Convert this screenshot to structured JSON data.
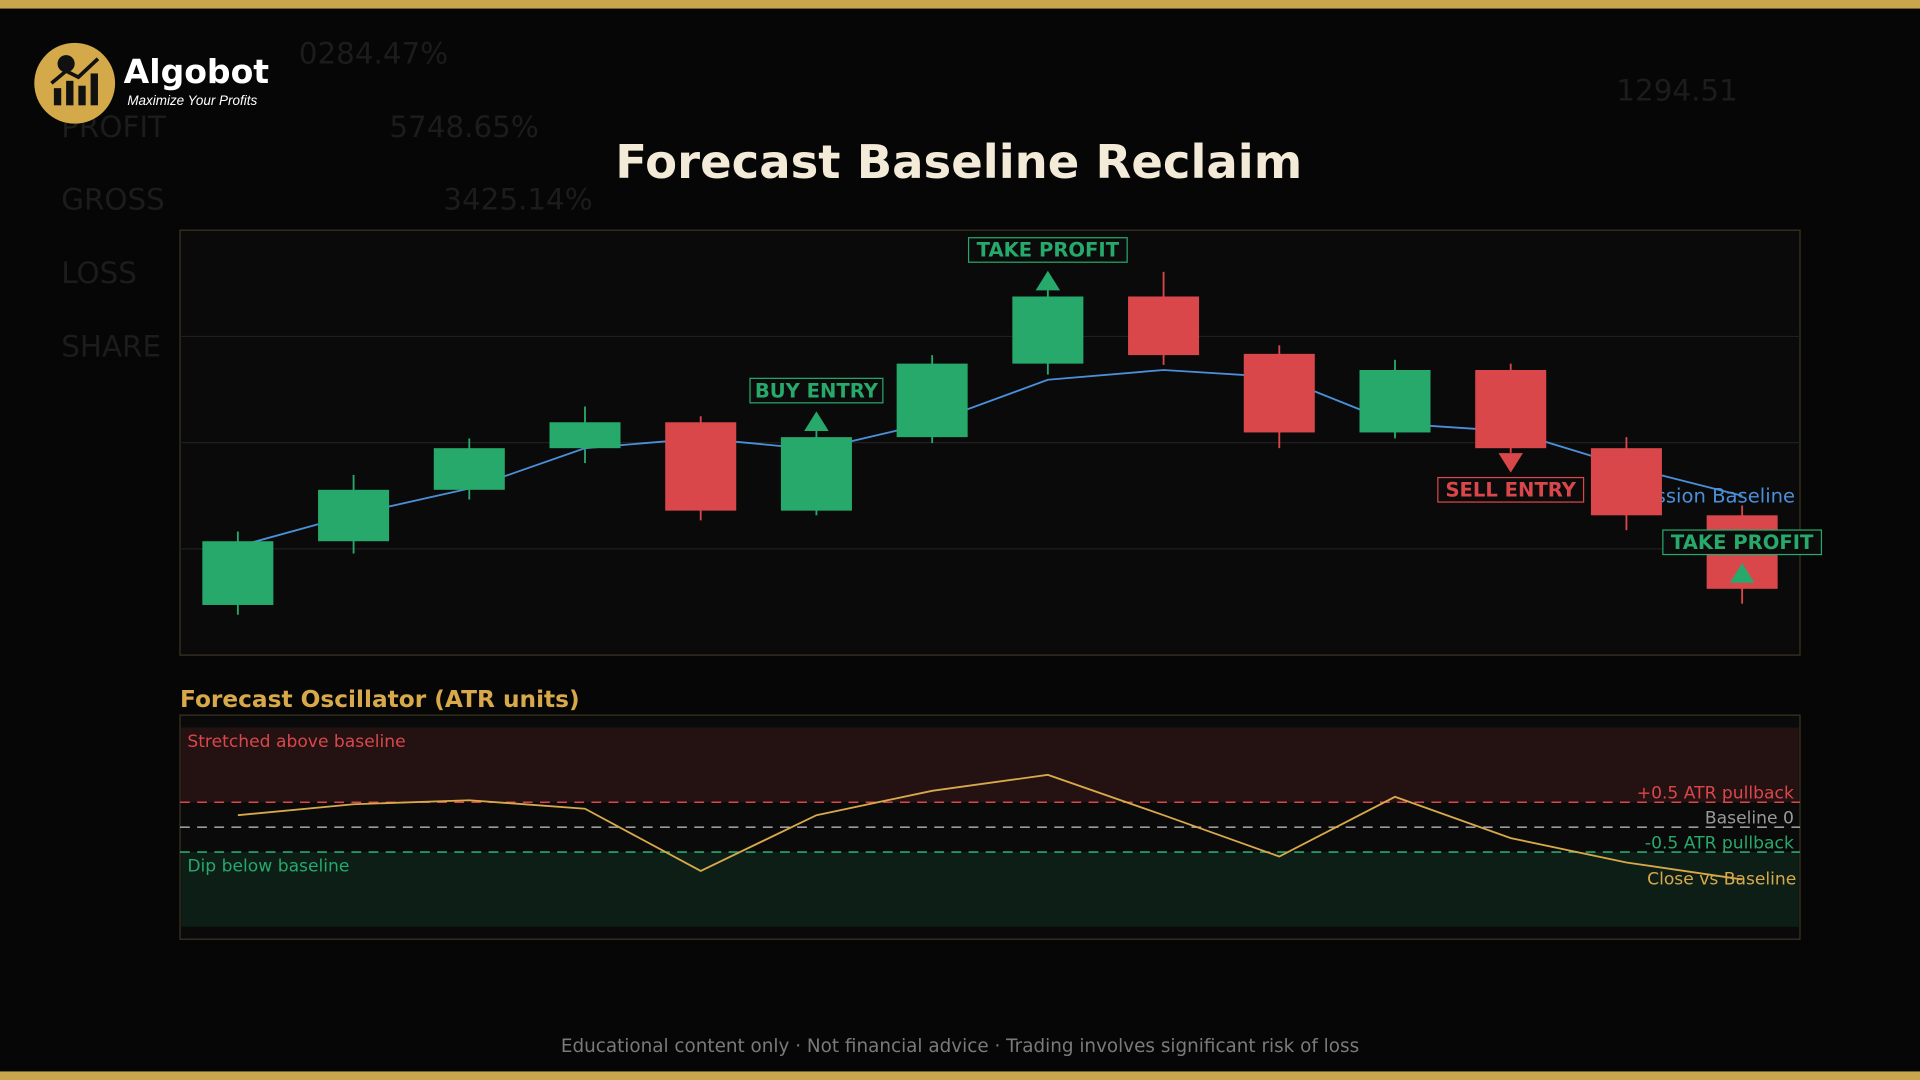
{
  "brand": {
    "name": "Algobot",
    "tagline": "Maximize Your Profits"
  },
  "background_text": [
    "0284.47%",
    "PROFIT",
    "5748.65%",
    "GROSS",
    "3425.14%",
    "LOSS",
    "SHARE",
    "1294.51"
  ],
  "footer": "Educational content only  ·  Not financial advice  ·  Trading involves significant risk of loss",
  "chart_data": [
    {
      "type": "candlestick",
      "title": "Forecast Baseline Reclaim",
      "ylim": [
        0,
        100
      ],
      "gridlines": [
        25,
        50,
        75
      ],
      "open": [
        11.8,
        26.8,
        38.9,
        48.7,
        54.8,
        34.0,
        51.3,
        68.6,
        84.4,
        70.9,
        52.4,
        67.1,
        48.7,
        32.9
      ],
      "high": [
        29.1,
        42.4,
        51.0,
        58.5,
        56.2,
        53.9,
        70.6,
        86.7,
        90.2,
        72.9,
        69.5,
        68.6,
        51.3,
        35.2
      ],
      "low": [
        9.5,
        23.9,
        36.6,
        45.2,
        31.7,
        32.9,
        49.9,
        66.0,
        68.3,
        48.7,
        51.0,
        47.6,
        29.4,
        12.1
      ],
      "close": [
        26.8,
        38.9,
        48.7,
        54.8,
        34.0,
        51.3,
        68.6,
        84.4,
        70.6,
        52.4,
        67.1,
        48.7,
        32.9,
        15.6
      ],
      "up_color": "#27a96b",
      "down_color": "#d9474b",
      "overlay": {
        "name": "Regression Baseline",
        "color": "#4a8fd8",
        "values": [
          25.6,
          33.1,
          39.2,
          48.7,
          51.0,
          48.4,
          54.8,
          64.8,
          67.1,
          65.4,
          54.5,
          52.7,
          44.4,
          37.5
        ]
      },
      "markers": [
        {
          "index": 5,
          "label": "BUY ENTRY",
          "side": "above",
          "color": "#27a96b"
        },
        {
          "index": 7,
          "label": "TAKE PROFIT",
          "side": "above",
          "color": "#27a96b"
        },
        {
          "index": 11,
          "label": "SELL ENTRY",
          "side": "below",
          "color": "#d9474b"
        },
        {
          "index": 13,
          "label": "TAKE PROFIT",
          "side": "above",
          "color": "#27a96b"
        }
      ]
    },
    {
      "type": "line",
      "title": "Forecast Oscillator (ATR units)",
      "ylim": [
        -2.25,
        2.25
      ],
      "series": [
        {
          "name": "Close vs Baseline",
          "color": "#d8a94a",
          "values": [
            0.24,
            0.46,
            0.54,
            0.37,
            -0.88,
            0.24,
            0.73,
            1.05,
            0.24,
            -0.59,
            0.61,
            -0.22,
            -0.71,
            -1.05
          ]
        }
      ],
      "levels": [
        {
          "value": 0.5,
          "label": "+0.5 ATR pullback",
          "color": "#d9474b"
        },
        {
          "value": 0,
          "label": "Baseline 0",
          "color": "#9a9a9a"
        },
        {
          "value": -0.5,
          "label": "-0.5 ATR pullback",
          "color": "#27a96b"
        }
      ],
      "zones": [
        {
          "from": 0.5,
          "to": 2,
          "label": "Stretched above baseline",
          "color": "#d9474b"
        },
        {
          "from": -0.5,
          "to": -2,
          "label": "Dip below baseline",
          "color": "#27a96b"
        }
      ]
    }
  ]
}
